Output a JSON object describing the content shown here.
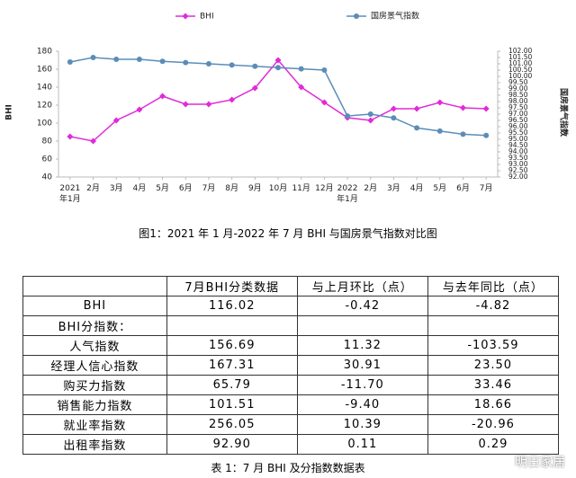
{
  "chart_data": {
    "type": "line",
    "y_label": "BHI",
    "y2_label": "国房景气指数",
    "categories": [
      "2021年1月",
      "2月",
      "3月",
      "4月",
      "5月",
      "6月",
      "7月",
      "8月",
      "9月",
      "10月",
      "11月",
      "12月",
      "2022年1月",
      "2月",
      "3月",
      "4月",
      "5月",
      "6月",
      "7月"
    ],
    "series": [
      {
        "name": "BHI",
        "color": "#e02bd8",
        "marker": "diamond",
        "values": [
          85,
          80,
          103,
          115,
          130,
          121,
          121,
          126,
          139,
          170,
          140,
          123,
          106,
          103,
          116,
          116,
          123,
          117,
          116
        ]
      },
      {
        "name": "国房景气指数",
        "color": "#5b8db8",
        "marker": "circle",
        "axis": "y2",
        "values": [
          101.14,
          101.5,
          101.36,
          101.36,
          101.2,
          101.1,
          101.0,
          100.9,
          100.8,
          100.7,
          100.6,
          100.5,
          96.85,
          97.0,
          96.7,
          95.9,
          95.65,
          95.4,
          95.3
        ]
      }
    ],
    "ylim": [
      40,
      180
    ],
    "yticks": [
      40,
      60,
      80,
      100,
      120,
      140,
      160,
      180
    ],
    "y2lim": [
      92,
      102
    ],
    "y2ticks": [
      {
        "value": 92,
        "label": "92.00"
      },
      {
        "value": 92.5,
        "label": "92.50"
      },
      {
        "value": 93,
        "label": "93.00"
      },
      {
        "value": 93.5,
        "label": "93.50"
      },
      {
        "value": 94,
        "label": "94.00"
      },
      {
        "value": 94.5,
        "label": "94.50"
      },
      {
        "value": 95,
        "label": "95.00"
      },
      {
        "value": 95.5,
        "label": "95.50"
      },
      {
        "value": 96,
        "label": "96.00"
      },
      {
        "value": 96.5,
        "label": "96.50"
      },
      {
        "value": 97,
        "label": "97.00"
      },
      {
        "value": 97.5,
        "label": "97.50"
      },
      {
        "value": 98,
        "label": "98.00"
      },
      {
        "value": 98.5,
        "label": "98.50"
      },
      {
        "value": 99,
        "label": "99.00"
      },
      {
        "value": 99.5,
        "label": "99.50"
      },
      {
        "value": 100,
        "label": "100.00"
      },
      {
        "value": 100.5,
        "label": "100.50"
      },
      {
        "value": 101,
        "label": "101.00"
      },
      {
        "value": 101.5,
        "label": "101.50"
      },
      {
        "value": 102,
        "label": "102.00"
      }
    ],
    "grid": false,
    "legend": "top"
  },
  "figure_caption": "图1：2021 年 1 月-2022 年 7 月 BHI 与国房景气指数对比图",
  "table": {
    "header": [
      "7月BHI分类数据",
      "与上月环比（点）",
      "与去年同比（点）"
    ],
    "rows": [
      [
        "BHI",
        "116.02",
        "-0.42",
        "-4.82"
      ]
    ],
    "section": "BHI分指数：",
    "sub_rows": [
      [
        "人气指数",
        "156.69",
        "11.32",
        "-103.59"
      ],
      [
        "经理人信心指数",
        "167.31",
        "30.91",
        "23.50"
      ],
      [
        "购买力指数",
        "65.79",
        "-11.70",
        "33.46"
      ],
      [
        "销售能力指数",
        "101.51",
        "-9.40",
        "18.66"
      ],
      [
        "就业率指数",
        "256.05",
        "10.39",
        "-20.96"
      ],
      [
        "出租率指数",
        "92.90",
        "0.11",
        "0.29"
      ]
    ],
    "caption": "表 1：7 月 BHI 及分指数数据表"
  },
  "watermark": "明日家居"
}
